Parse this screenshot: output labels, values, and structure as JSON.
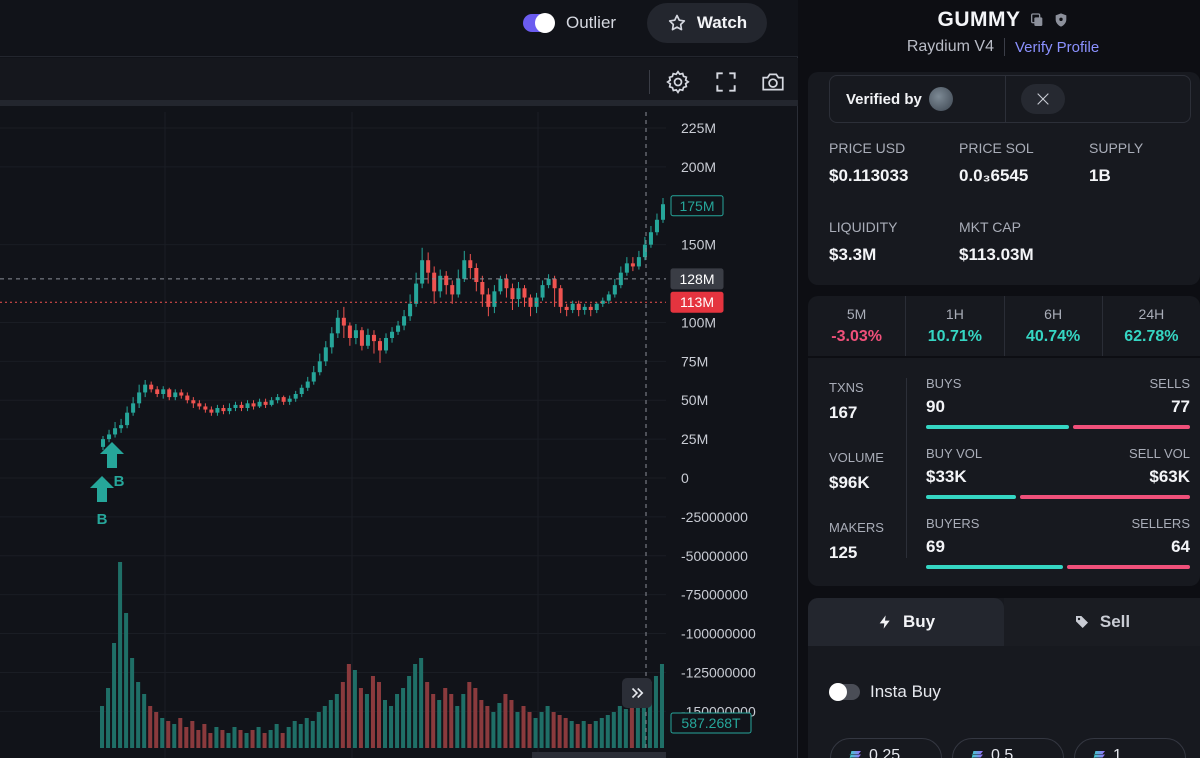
{
  "header": {
    "outlier_label": "Outlier",
    "outlier_enabled": true,
    "watch_label": "Watch"
  },
  "toolbar": {
    "icons": [
      "gear-icon",
      "fullscreen-icon",
      "camera-icon"
    ]
  },
  "chart": {
    "price_ticks": [
      "225M",
      "200M",
      "150M",
      "100M",
      "75M",
      "50M",
      "25M",
      "0",
      "-25000000",
      "-50000000",
      "-75000000",
      "-100000000",
      "-125000000",
      "-150000000"
    ],
    "price_tick_values": [
      225,
      200,
      150,
      100,
      75,
      50,
      25,
      0,
      -25,
      -50,
      -75,
      -100,
      -125,
      -150
    ],
    "badges": [
      {
        "label": "175M",
        "value": 175,
        "style": "outline-green"
      },
      {
        "label": "128M",
        "value": 128,
        "style": "gray"
      },
      {
        "label": "113M",
        "value": 113,
        "style": "red"
      }
    ],
    "volume_badge": "587.268T",
    "markers": [
      {
        "label": "B",
        "type": "buy"
      },
      {
        "label": "B",
        "type": "buy"
      }
    ],
    "candles": [
      [
        20,
        25,
        18,
        27
      ],
      [
        25,
        28,
        23,
        31
      ],
      [
        28,
        32,
        26,
        36
      ],
      [
        32,
        34,
        29,
        38
      ],
      [
        34,
        42,
        32,
        46
      ],
      [
        42,
        48,
        40,
        52
      ],
      [
        48,
        55,
        45,
        60
      ],
      [
        55,
        60,
        52,
        63
      ],
      [
        60,
        57,
        55,
        62
      ],
      [
        57,
        54,
        52,
        59
      ],
      [
        54,
        57,
        51,
        59
      ],
      [
        57,
        52,
        50,
        58
      ],
      [
        52,
        55,
        50,
        57
      ],
      [
        55,
        53,
        51,
        57
      ],
      [
        53,
        50,
        48,
        55
      ],
      [
        50,
        48,
        45,
        52
      ],
      [
        48,
        46,
        44,
        50
      ],
      [
        46,
        44,
        42,
        48
      ],
      [
        44,
        42,
        40,
        46
      ],
      [
        42,
        45,
        40,
        47
      ],
      [
        45,
        43,
        41,
        47
      ],
      [
        43,
        45,
        41,
        48
      ],
      [
        45,
        47,
        43,
        49
      ],
      [
        47,
        45,
        43,
        49
      ],
      [
        45,
        48,
        43,
        50
      ],
      [
        48,
        46,
        44,
        50
      ],
      [
        46,
        49,
        45,
        51
      ],
      [
        49,
        47,
        45,
        51
      ],
      [
        47,
        50,
        46,
        52
      ],
      [
        50,
        52,
        48,
        54
      ],
      [
        52,
        49,
        47,
        53
      ],
      [
        49,
        51,
        47,
        53
      ],
      [
        51,
        54,
        49,
        56
      ],
      [
        54,
        58,
        52,
        60
      ],
      [
        58,
        62,
        56,
        65
      ],
      [
        62,
        68,
        60,
        72
      ],
      [
        68,
        75,
        66,
        80
      ],
      [
        75,
        84,
        72,
        88
      ],
      [
        84,
        93,
        80,
        97
      ],
      [
        93,
        103,
        90,
        108
      ],
      [
        103,
        98,
        90,
        110
      ],
      [
        98,
        90,
        85,
        100
      ],
      [
        90,
        95,
        86,
        99
      ],
      [
        95,
        85,
        82,
        97
      ],
      [
        85,
        92,
        83,
        96
      ],
      [
        92,
        88,
        80,
        95
      ],
      [
        88,
        82,
        74,
        90
      ],
      [
        82,
        90,
        80,
        93
      ],
      [
        90,
        94,
        87,
        97
      ],
      [
        94,
        98,
        92,
        101
      ],
      [
        98,
        104,
        95,
        108
      ],
      [
        104,
        112,
        101,
        118
      ],
      [
        112,
        125,
        110,
        132
      ],
      [
        125,
        140,
        122,
        148
      ],
      [
        140,
        132,
        125,
        145
      ],
      [
        132,
        120,
        112,
        136
      ],
      [
        120,
        130,
        116,
        134
      ],
      [
        130,
        124,
        118,
        133
      ],
      [
        124,
        118,
        112,
        127
      ],
      [
        118,
        128,
        116,
        134
      ],
      [
        128,
        140,
        126,
        146
      ],
      [
        140,
        135,
        128,
        144
      ],
      [
        135,
        126,
        120,
        138
      ],
      [
        126,
        118,
        110,
        130
      ],
      [
        118,
        110,
        104,
        122
      ],
      [
        110,
        120,
        106,
        124
      ],
      [
        120,
        128,
        118,
        130
      ],
      [
        128,
        122,
        116,
        131
      ],
      [
        122,
        115,
        108,
        125
      ],
      [
        115,
        122,
        110,
        126
      ],
      [
        122,
        116,
        110,
        124
      ],
      [
        116,
        110,
        104,
        118
      ],
      [
        110,
        116,
        106,
        119
      ],
      [
        116,
        124,
        114,
        127
      ],
      [
        124,
        128,
        122,
        131
      ],
      [
        128,
        122,
        110,
        130
      ],
      [
        122,
        110,
        106,
        124
      ],
      [
        110,
        108,
        104,
        112
      ],
      [
        108,
        112,
        106,
        114
      ],
      [
        112,
        108,
        104,
        114
      ],
      [
        108,
        110,
        105,
        112
      ],
      [
        110,
        108,
        104,
        112
      ],
      [
        108,
        112,
        106,
        113
      ],
      [
        112,
        114,
        110,
        116
      ],
      [
        114,
        118,
        112,
        120
      ],
      [
        118,
        124,
        116,
        128
      ],
      [
        124,
        132,
        122,
        136
      ],
      [
        132,
        138,
        130,
        142
      ],
      [
        138,
        136,
        133,
        142
      ],
      [
        136,
        142,
        134,
        146
      ],
      [
        142,
        150,
        140,
        155
      ],
      [
        150,
        158,
        148,
        162
      ],
      [
        158,
        166,
        156,
        170
      ],
      [
        166,
        176,
        164,
        180
      ]
    ],
    "volumes": [
      14,
      20,
      35,
      62,
      45,
      30,
      22,
      18,
      14,
      12,
      10,
      9,
      8,
      10,
      7,
      9,
      6,
      8,
      5,
      7,
      6,
      5,
      7,
      6,
      5,
      6,
      7,
      5,
      6,
      8,
      5,
      7,
      9,
      8,
      10,
      9,
      12,
      14,
      16,
      18,
      22,
      28,
      26,
      20,
      18,
      24,
      22,
      16,
      14,
      18,
      20,
      24,
      28,
      30,
      22,
      18,
      16,
      20,
      18,
      14,
      18,
      22,
      20,
      16,
      14,
      12,
      15,
      18,
      16,
      12,
      14,
      12,
      10,
      12,
      14,
      12,
      11,
      10,
      9,
      8,
      9,
      8,
      9,
      10,
      11,
      12,
      14,
      13,
      16,
      18,
      20,
      22,
      24,
      28
    ]
  },
  "token": {
    "name": "GUMMY",
    "dex": "Raydium V4",
    "verify_link": "Verify Profile",
    "verified_by_label": "Verified by"
  },
  "stats": {
    "price_usd_label": "PRICE USD",
    "price_usd": "$0.113033",
    "price_sol_label": "PRICE SOL",
    "price_sol": "0.0₃6545",
    "supply_label": "SUPPLY",
    "supply": "1B",
    "liquidity_label": "LIQUIDITY",
    "liquidity": "$3.3M",
    "mktcap_label": "MKT CAP",
    "mktcap": "$113.03M"
  },
  "timeframes": [
    {
      "label": "5M",
      "value": "-3.03%",
      "trend": "neg"
    },
    {
      "label": "1H",
      "value": "10.71%",
      "trend": "pos"
    },
    {
      "label": "6H",
      "value": "40.74%",
      "trend": "pos"
    },
    {
      "label": "24H",
      "value": "62.78%",
      "trend": "pos"
    }
  ],
  "activity": {
    "txns_label": "TXNS",
    "txns": "167",
    "volume_label": "VOLUME",
    "volume": "$96K",
    "makers_label": "MAKERS",
    "makers": "125",
    "buys_label": "BUYS",
    "buys": "90",
    "sells_label": "SELLS",
    "sells": "77",
    "buy_share": 0.54,
    "buy_vol_label": "BUY VOL",
    "buy_vol": "$33K",
    "sell_vol_label": "SELL VOL",
    "sell_vol": "$63K",
    "buy_vol_share": 0.34,
    "buyers_label": "BUYERS",
    "buyers": "69",
    "sellers_label": "SELLERS",
    "sellers": "64",
    "buyer_share": 0.52
  },
  "trade": {
    "buy_tab": "Buy",
    "sell_tab": "Sell",
    "insta_buy_label": "Insta Buy",
    "amounts": [
      "0.25",
      "0.5",
      "1"
    ]
  },
  "colors": {
    "up": "#26a69a",
    "down": "#ef5350",
    "accent": "#6b5cf0",
    "positive": "#35d6c3",
    "negative": "#f0507a"
  }
}
